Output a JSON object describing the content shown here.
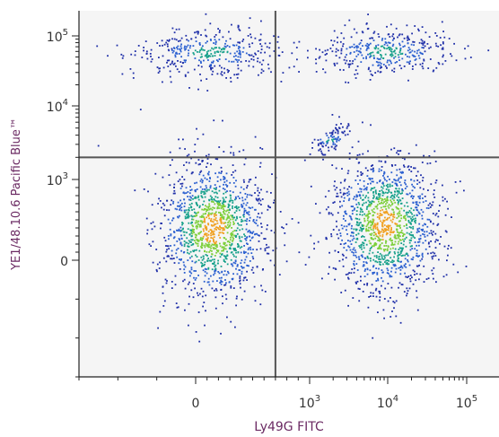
{
  "chart_data": {
    "type": "scatter",
    "style": "flow-cytometry density dot plot",
    "xlabel": "Ly49G FITC",
    "ylabel": "YE1/48.10.6 Pacific Blue™",
    "x_scale": "biexponential",
    "y_scale": "biexponential",
    "x_ticks": [
      {
        "value": 0,
        "base": "0",
        "exp": ""
      },
      {
        "value": 1000,
        "base": "10",
        "exp": "3"
      },
      {
        "value": 10000,
        "base": "10",
        "exp": "4"
      },
      {
        "value": 100000,
        "base": "10",
        "exp": "5"
      }
    ],
    "y_ticks": [
      {
        "value": 100000,
        "base": "10",
        "exp": "5"
      },
      {
        "value": 10000,
        "base": "10",
        "exp": "4"
      },
      {
        "value": 1000,
        "base": "10",
        "exp": "3"
      },
      {
        "value": 0,
        "base": "0",
        "exp": ""
      }
    ],
    "gates": {
      "x_threshold": 700,
      "y_threshold": 2000
    },
    "populations": [
      {
        "quadrant": "lower-left",
        "center": [
          150,
          400
        ],
        "density": "high"
      },
      {
        "quadrant": "lower-right",
        "center": [
          9000,
          450
        ],
        "density": "high"
      },
      {
        "quadrant": "upper-left",
        "center": [
          120,
          60000
        ],
        "density": "low"
      },
      {
        "quadrant": "upper-right",
        "center": [
          9000,
          60000
        ],
        "density": "low"
      },
      {
        "quadrant": "upper-right",
        "center": [
          1800,
          3500
        ],
        "density": "low"
      }
    ],
    "grid": false,
    "legend": "none",
    "colors": {
      "background": "#f5f5f5",
      "gate_line": "#555555",
      "density_low": "#1f2fa8",
      "density_mid": "#16a08a",
      "density_high": "#f0a020"
    }
  }
}
